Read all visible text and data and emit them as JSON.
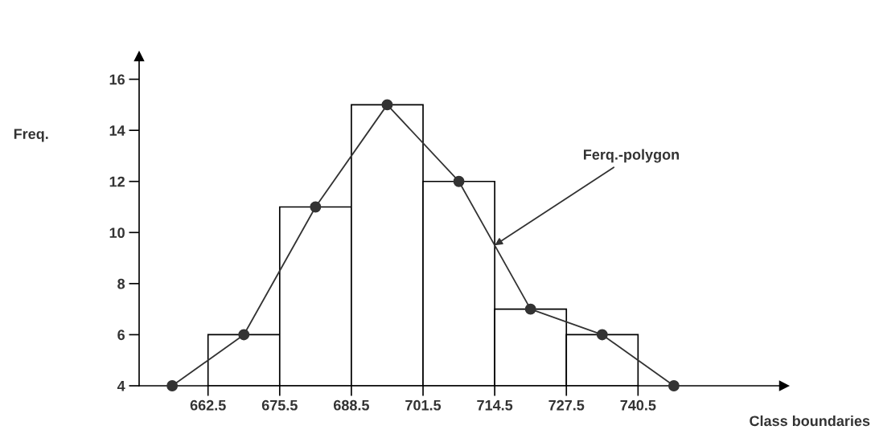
{
  "chart_data": {
    "type": "histogram",
    "bins": [
      662.5,
      675.5,
      688.5,
      701.5,
      714.5,
      727.5,
      740.5
    ],
    "values": [
      6,
      11,
      15,
      12,
      7,
      6
    ],
    "color": "#000000",
    "series": [
      {
        "type": "line",
        "x": [
          656,
          669,
          682,
          695,
          708,
          721,
          734,
          747
        ],
        "values": [
          4,
          6,
          11,
          15,
          12,
          7,
          6,
          4
        ],
        "color": "#333333"
      }
    ],
    "marker": "circle",
    "xlabel": "Class boundaries",
    "ylabel": "Freq.",
    "annotations": [
      {
        "text": "Ferq.-polygon",
        "x": 714.5,
        "y": 9.5
      }
    ],
    "xlim": [
      650,
      767
    ],
    "ylim": [
      4,
      16.9
    ],
    "xticks": [
      662.5,
      675.5,
      688.5,
      701.5,
      714.5,
      727.5,
      740.5
    ],
    "yticks": [
      4,
      6,
      8,
      10,
      12,
      14,
      16
    ],
    "grid": false,
    "legend": false
  }
}
